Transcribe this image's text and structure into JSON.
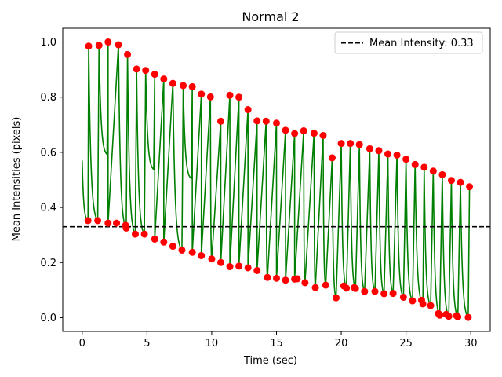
{
  "chart_data": {
    "type": "line",
    "title": "Normal 2",
    "xlabel": "Time (sec)",
    "ylabel": "Mean Intensities (pixels)",
    "xlim": [
      -1.5,
      31.5
    ],
    "ylim": [
      -0.05,
      1.05
    ],
    "x_ticks": [
      0,
      5,
      10,
      15,
      20,
      25,
      30
    ],
    "y_ticks": [
      0.0,
      0.2,
      0.4,
      0.6,
      0.8,
      1.0
    ],
    "x_tick_labels": [
      "0",
      "5",
      "10",
      "15",
      "20",
      "25",
      "30"
    ],
    "y_tick_labels": [
      "0.0",
      "0.2",
      "0.4",
      "0.6",
      "0.8",
      "1.0"
    ],
    "grid": false,
    "legend_position": "top-right",
    "series": [
      {
        "kind": "signal",
        "color": "#008000",
        "start_value": 0.57,
        "end_value": 0.47,
        "end_time": 30.0
      },
      {
        "name": "Mean Intensity: 0.33",
        "kind": "hline",
        "value": 0.33,
        "color": "#000000",
        "dashed": true
      },
      {
        "kind": "peaks",
        "color": "#ff0000",
        "x": [
          0.5,
          1.3,
          2.0,
          2.8,
          3.5,
          4.2,
          4.9,
          5.6,
          6.3,
          7.0,
          7.8,
          8.5,
          9.2,
          9.9,
          10.7,
          11.4,
          12.1,
          12.8,
          13.5,
          14.2,
          15.0,
          15.7,
          16.4,
          17.1,
          17.9,
          18.6,
          19.3,
          20.0,
          20.7,
          21.4,
          22.2,
          22.9,
          23.6,
          24.3,
          25.0,
          25.7,
          26.4,
          27.1,
          27.8,
          28.5,
          29.2,
          29.9
        ],
        "y": [
          0.985,
          0.988,
          1.0,
          0.99,
          0.955,
          0.902,
          0.897,
          0.883,
          0.866,
          0.85,
          0.842,
          0.838,
          0.811,
          0.801,
          0.713,
          0.807,
          0.8,
          0.755,
          0.714,
          0.713,
          0.706,
          0.68,
          0.668,
          0.678,
          0.669,
          0.661,
          0.58,
          0.632,
          0.632,
          0.628,
          0.613,
          0.606,
          0.594,
          0.59,
          0.575,
          0.556,
          0.546,
          0.532,
          0.519,
          0.498,
          0.491,
          0.475
        ]
      },
      {
        "kind": "troughs",
        "color": "#ff0000",
        "x": [
          0.45,
          1.2,
          2.0,
          2.65,
          3.35,
          3.4,
          4.1,
          4.8,
          5.6,
          6.3,
          7.0,
          7.7,
          8.5,
          9.2,
          10.0,
          10.7,
          11.4,
          12.1,
          12.8,
          13.5,
          14.3,
          15.0,
          15.7,
          16.4,
          16.6,
          17.2,
          18.0,
          18.8,
          19.6,
          20.2,
          20.4,
          21.0,
          21.1,
          21.8,
          22.6,
          23.3,
          24.0,
          24.8,
          25.5,
          26.2,
          26.3,
          26.9,
          27.5,
          27.6,
          28.1,
          28.3,
          28.9,
          29.0,
          29.8
        ],
        "y": [
          0.352,
          0.352,
          0.343,
          0.343,
          0.335,
          0.325,
          0.303,
          0.303,
          0.285,
          0.274,
          0.259,
          0.245,
          0.237,
          0.225,
          0.213,
          0.2,
          0.185,
          0.187,
          0.181,
          0.171,
          0.146,
          0.143,
          0.136,
          0.14,
          0.141,
          0.127,
          0.109,
          0.118,
          0.072,
          0.115,
          0.107,
          0.109,
          0.106,
          0.095,
          0.095,
          0.087,
          0.088,
          0.074,
          0.061,
          0.063,
          0.05,
          0.044,
          0.015,
          0.009,
          0.012,
          0.005,
          0.007,
          0.003,
          0.001
        ]
      }
    ]
  }
}
